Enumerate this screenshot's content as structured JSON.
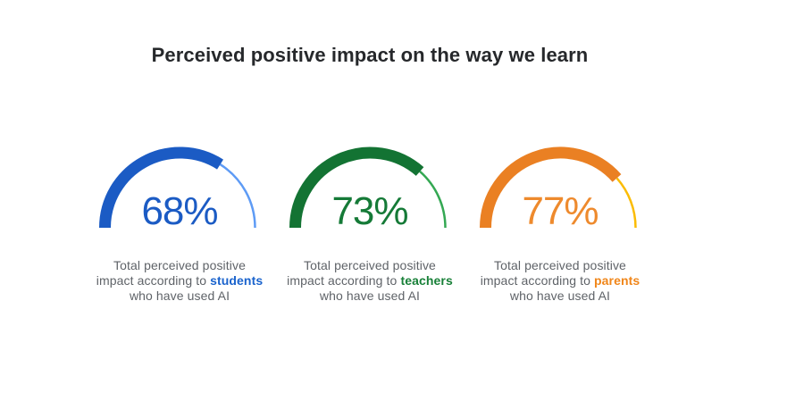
{
  "header": {
    "title": "Perceived positive impact on the way we learn"
  },
  "chart_data": {
    "type": "gauge",
    "shape": "semicircle",
    "title": "Perceived positive impact on the way we learn",
    "range": [
      0,
      100
    ],
    "unit": "%",
    "caption_text_color": "#5f6368",
    "gauges": [
      {
        "value": 68,
        "value_label": "68%",
        "audience": "students",
        "caption_line1": "Total perceived positive",
        "caption_line2_prefix": "impact according to ",
        "caption_keyword": "students",
        "caption_line3": "who have used AI",
        "arc_color": "#1b5bc4",
        "track_color": "#5e9bf5",
        "value_color": "#1b5bc4",
        "keyword_color": "#1a63cd"
      },
      {
        "value": 73,
        "value_label": "73%",
        "audience": "teachers",
        "caption_line1": "Total perceived positive",
        "caption_line2_prefix": "impact according to ",
        "caption_keyword": "teachers",
        "caption_line3": "who have used AI",
        "arc_color": "#137333",
        "track_color": "#34a853",
        "value_color": "#157a37",
        "keyword_color": "#188038"
      },
      {
        "value": 77,
        "value_label": "77%",
        "audience": "parents",
        "caption_line1": "Total perceived positive",
        "caption_line2_prefix": "impact according to ",
        "caption_keyword": "parents",
        "caption_line3": "who have used AI",
        "arc_color": "#ea8023",
        "track_color": "#fbbc04",
        "value_color": "#ee8a2d",
        "keyword_color": "#f0861a"
      }
    ]
  }
}
